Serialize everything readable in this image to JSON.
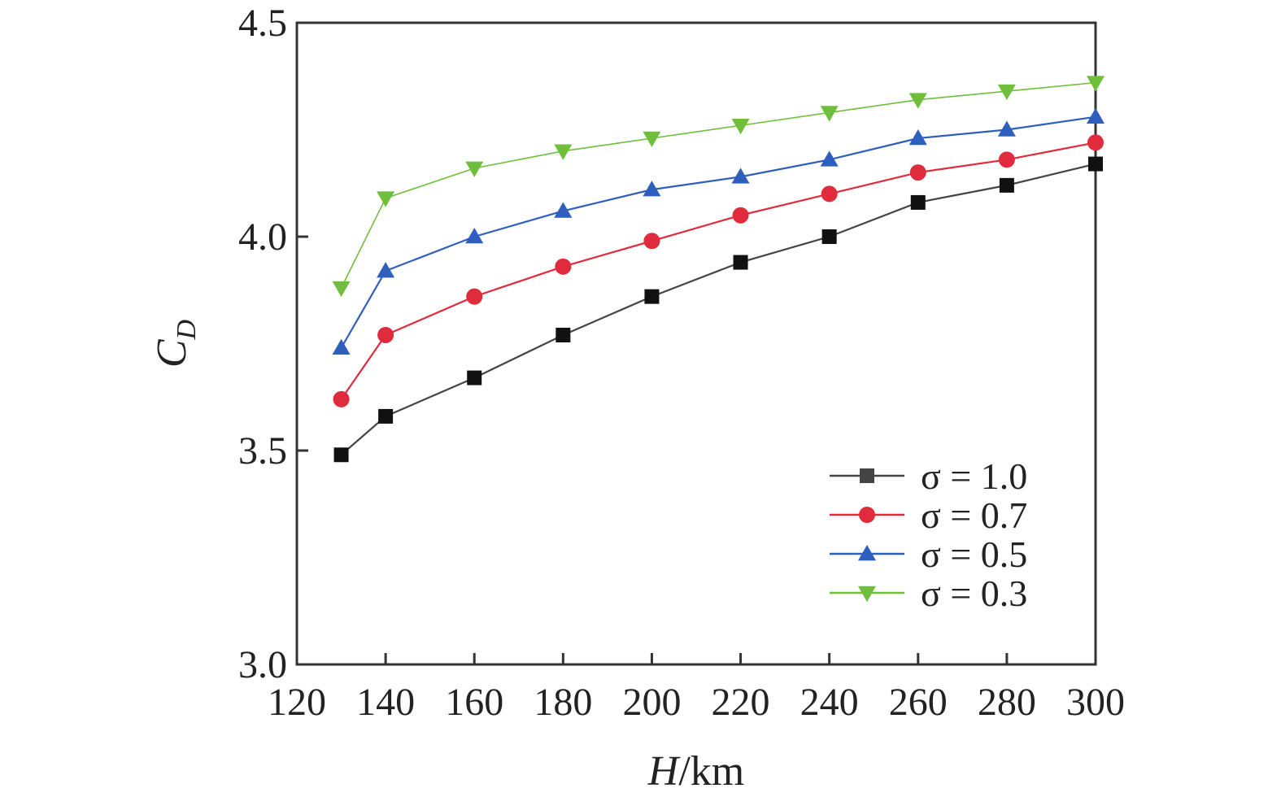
{
  "chart_data": {
    "type": "line",
    "x": [
      130,
      140,
      160,
      180,
      200,
      220,
      240,
      260,
      280,
      300
    ],
    "xlim": [
      120,
      300
    ],
    "ylim": [
      3.0,
      4.5
    ],
    "xticks": [
      120,
      140,
      160,
      180,
      200,
      220,
      240,
      260,
      280,
      300
    ],
    "yticks": [
      3.0,
      3.5,
      4.0,
      4.5
    ],
    "ytick_labels": [
      "3.0",
      "3.5",
      "4.0",
      "4.5"
    ],
    "xlabel": {
      "var": "H",
      "unit": "/km"
    },
    "ylabel": {
      "main": "C",
      "sub": "D"
    },
    "grid": false,
    "legend_position": "bottom-right",
    "series": [
      {
        "name": "σ = 1.0",
        "color": "#444444",
        "marker": "square",
        "marker_color": "#111111",
        "values": [
          3.49,
          3.58,
          3.67,
          3.77,
          3.86,
          3.94,
          4.0,
          4.08,
          4.12,
          4.17
        ]
      },
      {
        "name": "σ = 0.7",
        "color": "#e02b3c",
        "marker": "circle",
        "marker_color": "#e02b3c",
        "values": [
          3.62,
          3.77,
          3.86,
          3.93,
          3.99,
          4.05,
          4.1,
          4.15,
          4.18,
          4.22
        ]
      },
      {
        "name": "σ = 0.5",
        "color": "#2e5fbe",
        "marker": "triangle-up",
        "marker_color": "#2e5fbe",
        "values": [
          3.74,
          3.92,
          4.0,
          4.06,
          4.11,
          4.14,
          4.18,
          4.23,
          4.25,
          4.28
        ]
      },
      {
        "name": "σ = 0.3",
        "color": "#6fbf3c",
        "marker": "triangle-down",
        "marker_color": "#6fbf3c",
        "values": [
          3.88,
          4.09,
          4.16,
          4.2,
          4.23,
          4.26,
          4.29,
          4.32,
          4.34,
          4.36
        ]
      }
    ]
  }
}
